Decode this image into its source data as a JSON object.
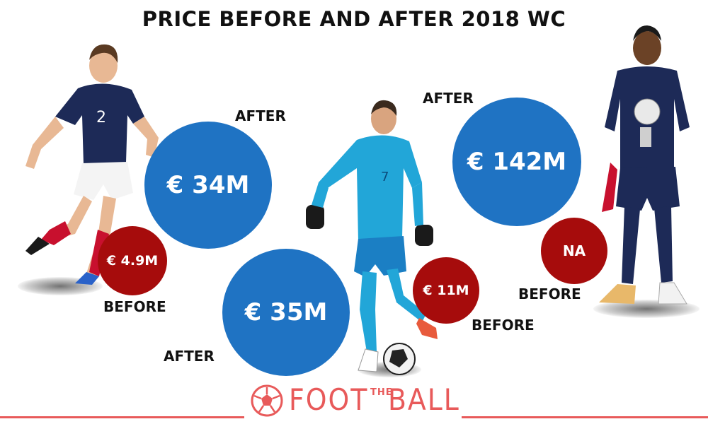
{
  "title": "PRICE BEFORE AND AFTER 2018 WC",
  "colors": {
    "after": "#1f73c3",
    "before": "#a60c0c",
    "brand": "#e85a5a"
  },
  "players": [
    {
      "after_value": "€ 34M",
      "after_label": "AFTER",
      "before_value": "€ 4.9M",
      "before_label": "BEFORE"
    },
    {
      "after_value": "€ 35M",
      "after_label": "AFTER",
      "before_value": "€ 11M",
      "before_label": "BEFORE"
    },
    {
      "after_value": "€ 142M",
      "after_label": "AFTER",
      "before_value": "NA",
      "before_label": "BEFORE"
    }
  ],
  "logo": {
    "word_left": "FOOT",
    "word_small": "THE",
    "word_right": "BALL",
    "icon": "football-icon"
  }
}
